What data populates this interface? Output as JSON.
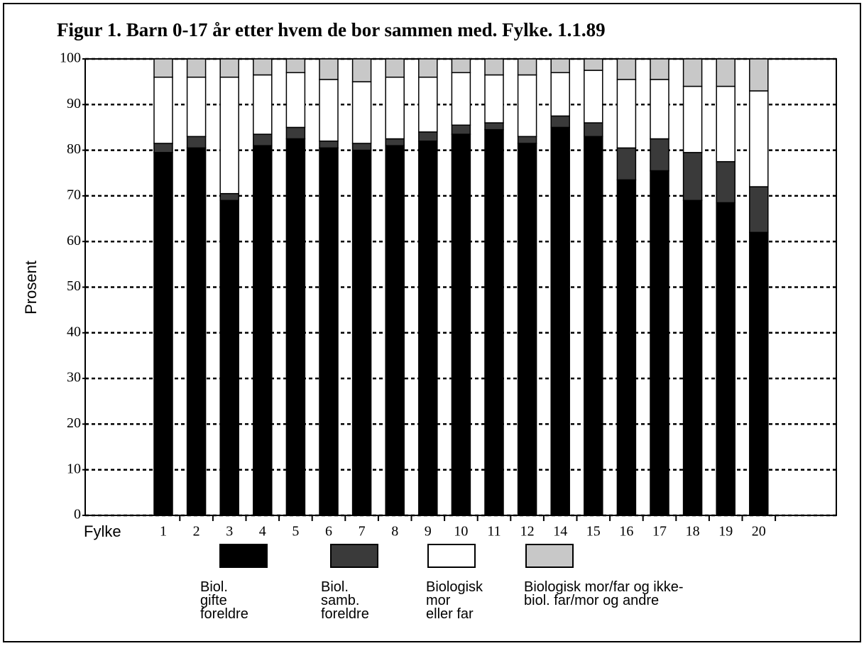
{
  "chart_data": {
    "type": "stacked_bar",
    "title": "Figur 1. Barn 0-17 år etter hvem de bor sammen med. Fylke. 1.1.89",
    "x_label": "Fylke",
    "y_label": "Prosent",
    "categories": [
      "1",
      "2",
      "3",
      "4",
      "5",
      "6",
      "7",
      "8",
      "9",
      "10",
      "11",
      "12",
      "14",
      "15",
      "16",
      "17",
      "18",
      "19",
      "20"
    ],
    "series": [
      {
        "name": "Biol. gifte foreldre",
        "color": "#000000",
        "values": [
          79.5,
          80.5,
          69,
          81,
          82.5,
          80.5,
          80,
          81,
          82,
          83.5,
          84.5,
          81.5,
          85,
          83,
          73.5,
          75.5,
          69,
          68.5,
          62
        ]
      },
      {
        "name": "Biol. samb. foreldre",
        "color": "#3a3a3a",
        "values": [
          2,
          2.5,
          1.5,
          2.5,
          2.5,
          1.5,
          1.5,
          1.5,
          2,
          2,
          1.5,
          1.5,
          2.5,
          3,
          7,
          7,
          10.5,
          9,
          10
        ]
      },
      {
        "name": "Biologisk mor eller far",
        "color": "#ffffff",
        "values": [
          14.5,
          13,
          25.5,
          13,
          12,
          13.5,
          13.5,
          13.5,
          12,
          11.5,
          10.5,
          13.5,
          9.5,
          11.5,
          15,
          13,
          14.5,
          16.5,
          21
        ]
      },
      {
        "name": "Biologisk mor/far og ikke-biol. far/mor og andre",
        "color": "#c8c8c8",
        "values": [
          4,
          4,
          4,
          3.5,
          3,
          4.5,
          5,
          4,
          4,
          3,
          3.5,
          3.5,
          3,
          2.5,
          4.5,
          4.5,
          6,
          6,
          7
        ]
      }
    ],
    "ylim": [
      0,
      100
    ],
    "yticks": [
      0,
      10,
      20,
      30,
      40,
      50,
      60,
      70,
      80,
      90,
      100
    ],
    "grid": true
  }
}
